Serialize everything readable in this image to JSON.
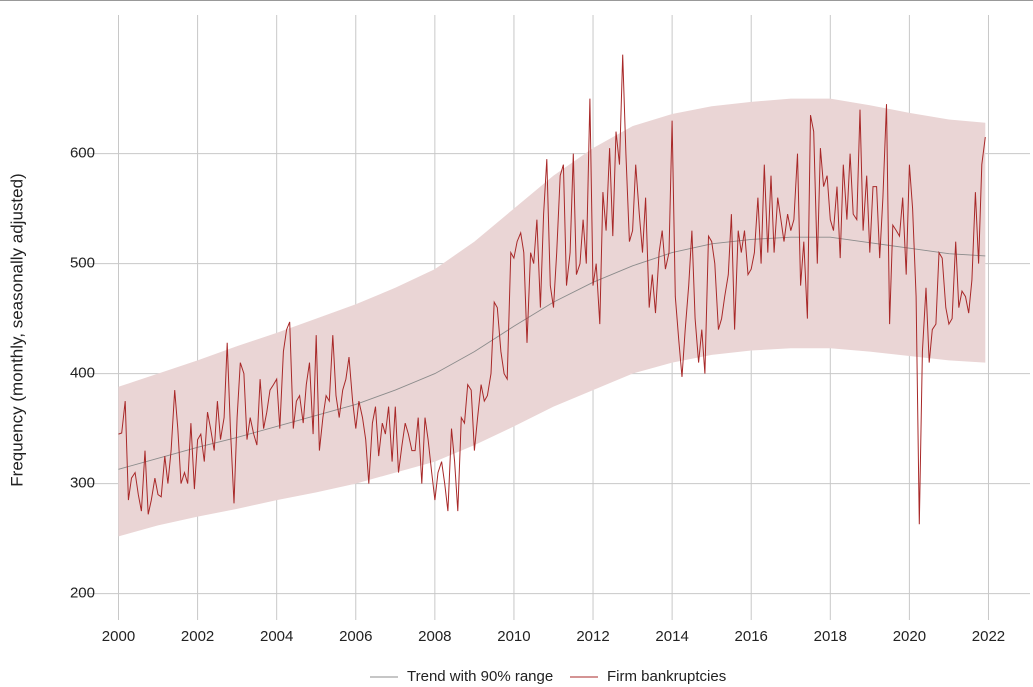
{
  "chart_data": {
    "type": "line",
    "y_label": "Frequency (monthly, seasonally adjusted)",
    "xlim": [
      1998.9,
      2023.05
    ],
    "ylim": [
      176,
      726
    ],
    "xticks": [
      2000,
      2002,
      2004,
      2006,
      2008,
      2010,
      2012,
      2014,
      2016,
      2018,
      2020,
      2022
    ],
    "yticks": [
      200,
      300,
      400,
      500,
      600
    ],
    "grid": true,
    "legend": "bottom",
    "series": [
      {
        "name": "Trend with 90% range",
        "color": "#8c8c8c",
        "band_color": "#ead5d5",
        "x": [
          2000,
          2001,
          2002,
          2003,
          2004,
          2005,
          2006,
          2007,
          2008,
          2009,
          2010,
          2011,
          2012,
          2013,
          2014,
          2015,
          2016,
          2017,
          2018,
          2019,
          2020,
          2021,
          2021.92
        ],
        "values": [
          313,
          323,
          333,
          342,
          352,
          362,
          372,
          385,
          400,
          420,
          443,
          465,
          483,
          498,
          510,
          518,
          522,
          524,
          524,
          519,
          514,
          509,
          507
        ],
        "lower": [
          252,
          262,
          270,
          277,
          285,
          292,
          300,
          310,
          320,
          335,
          352,
          370,
          385,
          400,
          410,
          417,
          421,
          423,
          423,
          420,
          416,
          412,
          410
        ],
        "upper": [
          388,
          400,
          412,
          425,
          437,
          450,
          463,
          478,
          495,
          520,
          550,
          580,
          605,
          625,
          636,
          643,
          647,
          650,
          650,
          644,
          637,
          631,
          628
        ]
      },
      {
        "name": "Firm bankruptcies",
        "color": "#a82828",
        "x": [
          2000,
          2000.08,
          2000.17,
          2000.25,
          2000.33,
          2000.42,
          2000.5,
          2000.58,
          2000.67,
          2000.75,
          2000.83,
          2000.92,
          2001,
          2001.08,
          2001.17,
          2001.25,
          2001.33,
          2001.42,
          2001.5,
          2001.58,
          2001.67,
          2001.75,
          2001.83,
          2001.92,
          2002,
          2002.08,
          2002.17,
          2002.25,
          2002.33,
          2002.42,
          2002.5,
          2002.58,
          2002.67,
          2002.75,
          2002.83,
          2002.92,
          2003,
          2003.08,
          2003.17,
          2003.25,
          2003.33,
          2003.42,
          2003.5,
          2003.58,
          2003.67,
          2003.75,
          2003.83,
          2003.92,
          2004,
          2004.08,
          2004.17,
          2004.25,
          2004.33,
          2004.42,
          2004.5,
          2004.58,
          2004.67,
          2004.75,
          2004.83,
          2004.92,
          2005,
          2005.08,
          2005.17,
          2005.25,
          2005.33,
          2005.42,
          2005.5,
          2005.58,
          2005.67,
          2005.75,
          2005.83,
          2005.92,
          2006,
          2006.08,
          2006.17,
          2006.25,
          2006.33,
          2006.42,
          2006.5,
          2006.58,
          2006.67,
          2006.75,
          2006.83,
          2006.92,
          2007,
          2007.08,
          2007.17,
          2007.25,
          2007.33,
          2007.42,
          2007.5,
          2007.58,
          2007.67,
          2007.75,
          2007.83,
          2007.92,
          2008,
          2008.08,
          2008.17,
          2008.25,
          2008.33,
          2008.42,
          2008.5,
          2008.58,
          2008.67,
          2008.75,
          2008.83,
          2008.92,
          2009,
          2009.08,
          2009.17,
          2009.25,
          2009.33,
          2009.42,
          2009.5,
          2009.58,
          2009.67,
          2009.75,
          2009.83,
          2009.92,
          2010,
          2010.08,
          2010.17,
          2010.25,
          2010.33,
          2010.42,
          2010.5,
          2010.58,
          2010.67,
          2010.75,
          2010.83,
          2010.92,
          2011,
          2011.08,
          2011.17,
          2011.25,
          2011.33,
          2011.42,
          2011.5,
          2011.58,
          2011.67,
          2011.75,
          2011.83,
          2011.92,
          2012,
          2012.08,
          2012.17,
          2012.25,
          2012.33,
          2012.42,
          2012.5,
          2012.58,
          2012.67,
          2012.75,
          2012.83,
          2012.92,
          2013,
          2013.08,
          2013.17,
          2013.25,
          2013.33,
          2013.42,
          2013.5,
          2013.58,
          2013.67,
          2013.75,
          2013.83,
          2013.92,
          2014,
          2014.08,
          2014.17,
          2014.25,
          2014.33,
          2014.42,
          2014.5,
          2014.58,
          2014.67,
          2014.75,
          2014.83,
          2014.92,
          2015,
          2015.08,
          2015.17,
          2015.25,
          2015.33,
          2015.42,
          2015.5,
          2015.58,
          2015.67,
          2015.75,
          2015.83,
          2015.92,
          2016,
          2016.08,
          2016.17,
          2016.25,
          2016.33,
          2016.42,
          2016.5,
          2016.58,
          2016.67,
          2016.75,
          2016.83,
          2016.92,
          2017,
          2017.08,
          2017.17,
          2017.25,
          2017.33,
          2017.42,
          2017.5,
          2017.58,
          2017.67,
          2017.75,
          2017.83,
          2017.92,
          2018,
          2018.08,
          2018.17,
          2018.25,
          2018.33,
          2018.42,
          2018.5,
          2018.58,
          2018.67,
          2018.75,
          2018.83,
          2018.92,
          2019,
          2019.08,
          2019.17,
          2019.25,
          2019.33,
          2019.42,
          2019.5,
          2019.58,
          2019.67,
          2019.75,
          2019.83,
          2019.92,
          2020,
          2020.08,
          2020.17,
          2020.25,
          2020.33,
          2020.42,
          2020.5,
          2020.58,
          2020.67,
          2020.75,
          2020.83,
          2020.92,
          2021,
          2021.08,
          2021.17,
          2021.25,
          2021.33,
          2021.42,
          2021.5,
          2021.58,
          2021.67,
          2021.75,
          2021.83,
          2021.92
        ],
        "values": [
          345,
          346,
          375,
          285,
          305,
          310,
          290,
          275,
          330,
          272,
          285,
          305,
          290,
          288,
          325,
          300,
          330,
          385,
          350,
          300,
          310,
          300,
          355,
          295,
          340,
          345,
          320,
          365,
          350,
          330,
          375,
          340,
          360,
          428,
          350,
          282,
          360,
          410,
          400,
          340,
          360,
          345,
          335,
          395,
          350,
          365,
          385,
          390,
          395,
          350,
          420,
          440,
          447,
          350,
          375,
          380,
          355,
          390,
          410,
          345,
          435,
          330,
          360,
          380,
          375,
          435,
          380,
          360,
          385,
          395,
          415,
          375,
          350,
          375,
          360,
          340,
          300,
          355,
          370,
          325,
          355,
          345,
          370,
          320,
          370,
          310,
          335,
          355,
          345,
          330,
          330,
          360,
          300,
          360,
          340,
          310,
          285,
          310,
          320,
          300,
          275,
          350,
          320,
          275,
          360,
          355,
          390,
          385,
          330,
          360,
          390,
          375,
          380,
          400,
          465,
          460,
          420,
          400,
          395,
          510,
          505,
          520,
          528,
          510,
          428,
          510,
          500,
          540,
          460,
          545,
          595,
          480,
          460,
          510,
          580,
          590,
          480,
          510,
          600,
          490,
          500,
          540,
          500,
          650,
          480,
          500,
          445,
          565,
          530,
          605,
          525,
          620,
          590,
          690,
          600,
          520,
          530,
          590,
          545,
          510,
          560,
          460,
          490,
          455,
          510,
          530,
          495,
          510,
          630,
          470,
          430,
          397,
          440,
          480,
          530,
          450,
          410,
          440,
          400,
          525,
          520,
          500,
          440,
          450,
          470,
          490,
          545,
          440,
          530,
          510,
          530,
          490,
          495,
          510,
          560,
          500,
          590,
          510,
          580,
          510,
          560,
          540,
          520,
          545,
          530,
          540,
          600,
          480,
          520,
          450,
          635,
          620,
          500,
          605,
          570,
          580,
          540,
          530,
          570,
          505,
          590,
          540,
          600,
          545,
          540,
          640,
          530,
          580,
          510,
          570,
          570,
          505,
          560,
          645,
          445,
          535,
          530,
          525,
          560,
          490,
          590,
          550,
          470,
          263,
          420,
          478,
          410,
          440,
          445,
          510,
          505,
          460,
          445,
          450,
          520,
          460,
          475,
          470,
          455,
          485,
          565,
          500,
          590,
          615
        ]
      }
    ]
  }
}
